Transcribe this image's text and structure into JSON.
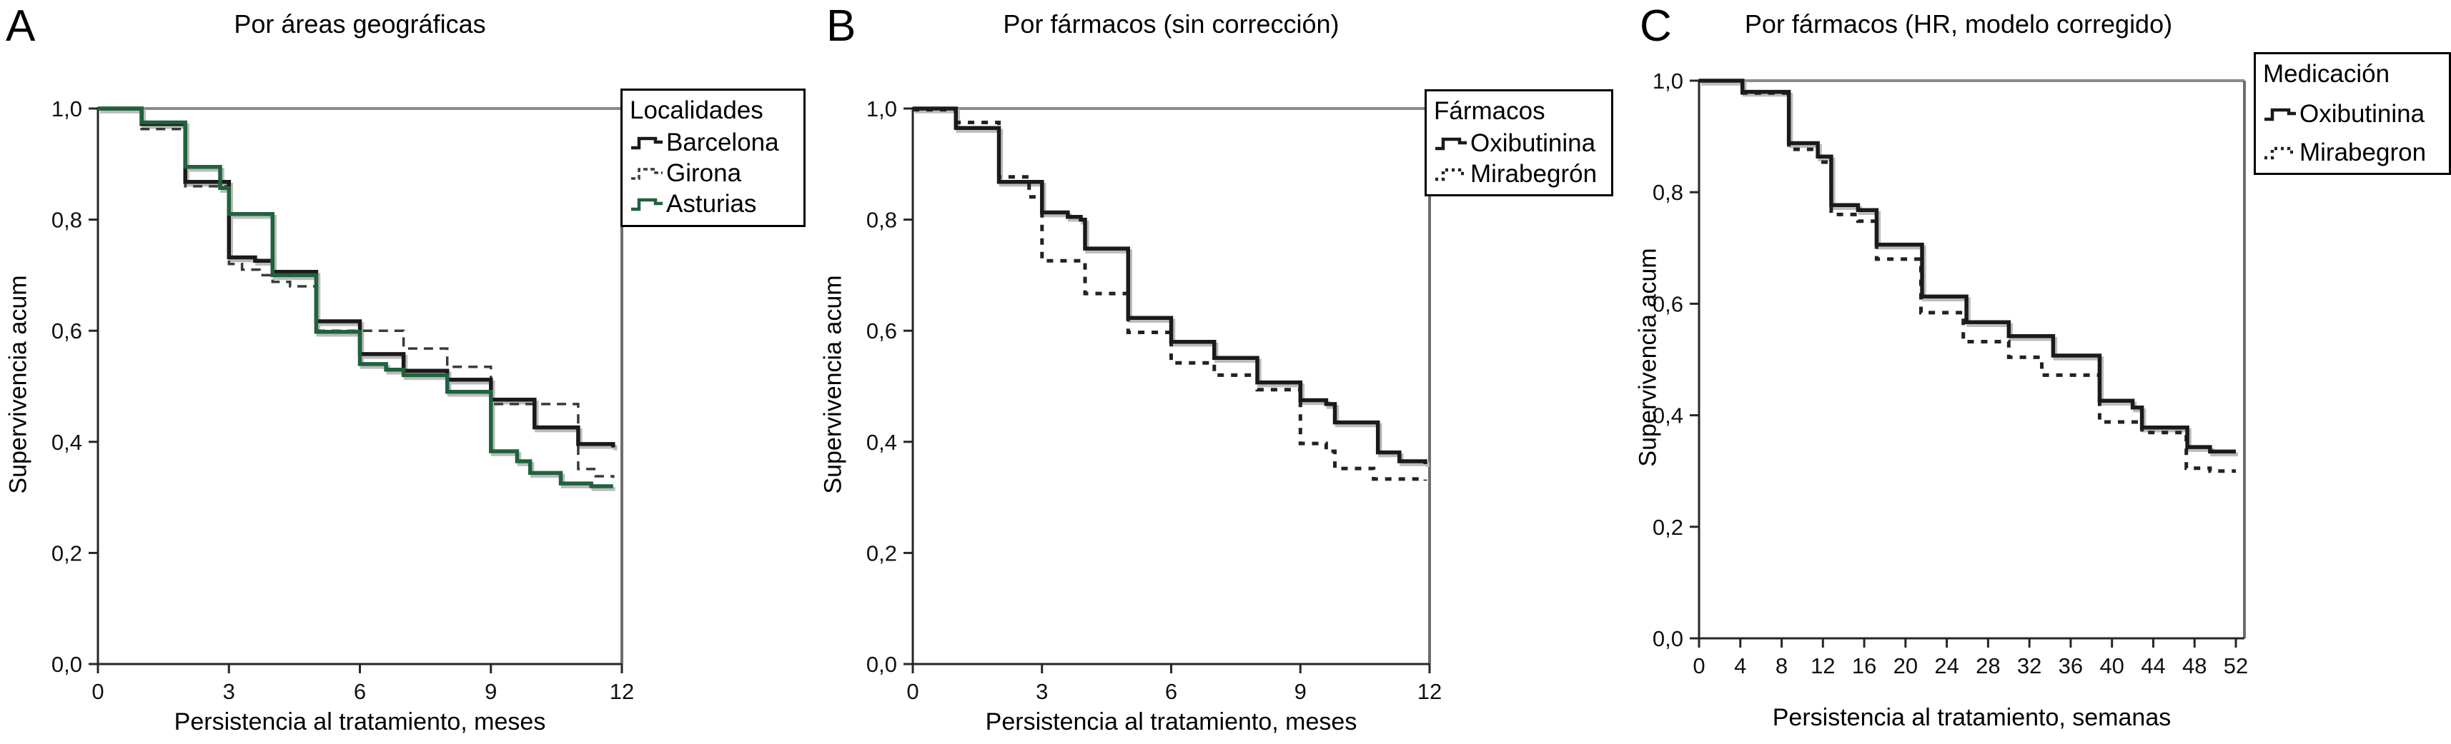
{
  "chart_data": [
    {
      "panel_label": "A",
      "title": "Por áreas geográficas",
      "type": "line",
      "subtype": "kaplan-meier-step",
      "xlabel": "Persistencia al tratamiento, meses",
      "ylabel": "Supervivencia acum",
      "xlim": [
        0,
        12
      ],
      "ylim": [
        0,
        1
      ],
      "grid": false,
      "xticks": [
        0,
        3,
        6,
        9,
        12
      ],
      "xtick_labels": [
        "0",
        "3",
        "6",
        "9",
        "12"
      ],
      "yticks": [
        0,
        0.2,
        0.4,
        0.6,
        0.8,
        1.0
      ],
      "ytick_labels": [
        "0,0",
        "0,2",
        "0,4",
        "0,6",
        "0,8",
        "1,0"
      ],
      "legend": {
        "title": "Localidades",
        "position": "top-right-outside"
      },
      "series": [
        {
          "name": "Barcelona",
          "color": "#1a1a1a",
          "dash": "solid",
          "points": [
            [
              0,
              1.0
            ],
            [
              1,
              0.972
            ],
            [
              2,
              0.868
            ],
            [
              3,
              0.732
            ],
            [
              3.6,
              0.726
            ],
            [
              4,
              0.706
            ],
            [
              5,
              0.617
            ],
            [
              6,
              0.558
            ],
            [
              7,
              0.528
            ],
            [
              8,
              0.512
            ],
            [
              9,
              0.476
            ],
            [
              10,
              0.426
            ],
            [
              11,
              0.396
            ],
            [
              11.8,
              0.39
            ]
          ]
        },
        {
          "name": "Girona",
          "color": "#3a3a3a",
          "dash": "dashed",
          "points": [
            [
              0,
              1.0
            ],
            [
              1,
              0.963
            ],
            [
              2,
              0.86
            ],
            [
              3,
              0.72
            ],
            [
              3.3,
              0.71
            ],
            [
              3.7,
              0.7
            ],
            [
              4,
              0.688
            ],
            [
              4.4,
              0.68
            ],
            [
              5,
              0.6
            ],
            [
              7,
              0.568
            ],
            [
              8,
              0.535
            ],
            [
              9,
              0.468
            ],
            [
              11,
              0.351
            ],
            [
              11.4,
              0.338
            ],
            [
              11.8,
              0.335
            ]
          ]
        },
        {
          "name": "Asturias",
          "color": "#1f623c",
          "dash": "solid",
          "points": [
            [
              0,
              1.0
            ],
            [
              1,
              0.975
            ],
            [
              2,
              0.895
            ],
            [
              2.8,
              0.857
            ],
            [
              3,
              0.81
            ],
            [
              4,
              0.7
            ],
            [
              5,
              0.598
            ],
            [
              6,
              0.54
            ],
            [
              6.6,
              0.53
            ],
            [
              7,
              0.52
            ],
            [
              8,
              0.49
            ],
            [
              9,
              0.383
            ],
            [
              9.6,
              0.365
            ],
            [
              9.9,
              0.344
            ],
            [
              10.6,
              0.325
            ],
            [
              11.3,
              0.32
            ],
            [
              11.8,
              0.32
            ]
          ]
        }
      ]
    },
    {
      "panel_label": "B",
      "title": "Por fármacos (sin corrección)",
      "type": "line",
      "subtype": "kaplan-meier-step",
      "xlabel": "Persistencia al tratamiento, meses",
      "ylabel": "Supervivencia acum",
      "xlim": [
        0,
        12
      ],
      "ylim": [
        0,
        1
      ],
      "grid": false,
      "xticks": [
        0,
        3,
        6,
        9,
        12
      ],
      "xtick_labels": [
        "0",
        "3",
        "6",
        "9",
        "12"
      ],
      "yticks": [
        0,
        0.2,
        0.4,
        0.6,
        0.8,
        1.0
      ],
      "ytick_labels": [
        "0,0",
        "0,2",
        "0,4",
        "0,6",
        "0,8",
        "1,0"
      ],
      "legend": {
        "title": "Fármacos",
        "position": "top-right-outside"
      },
      "series": [
        {
          "name": "Oxibutinina",
          "color": "#1a1a1a",
          "dash": "solid",
          "points": [
            [
              0,
              1.0
            ],
            [
              1,
              0.965
            ],
            [
              2,
              0.868
            ],
            [
              3,
              0.813
            ],
            [
              3.6,
              0.805
            ],
            [
              3.9,
              0.8
            ],
            [
              4,
              0.748
            ],
            [
              5,
              0.623
            ],
            [
              6,
              0.58
            ],
            [
              7,
              0.551
            ],
            [
              8,
              0.507
            ],
            [
              9,
              0.475
            ],
            [
              9.6,
              0.468
            ],
            [
              9.8,
              0.435
            ],
            [
              10.8,
              0.381
            ],
            [
              11.3,
              0.365
            ],
            [
              11.9,
              0.36
            ]
          ]
        },
        {
          "name": "Mirabegrón",
          "color": "#222222",
          "dash": "dotted",
          "points": [
            [
              0,
              0.998
            ],
            [
              1,
              0.975
            ],
            [
              2,
              0.877
            ],
            [
              2.7,
              0.841
            ],
            [
              3,
              0.726
            ],
            [
              4,
              0.667
            ],
            [
              5,
              0.597
            ],
            [
              6,
              0.542
            ],
            [
              7,
              0.52
            ],
            [
              8,
              0.494
            ],
            [
              9,
              0.397
            ],
            [
              9.6,
              0.383
            ],
            [
              9.8,
              0.352
            ],
            [
              10.7,
              0.333
            ],
            [
              11.9,
              0.33
            ]
          ]
        }
      ]
    },
    {
      "panel_label": "C",
      "title": "Por fármacos (HR, modelo corregido)",
      "type": "line",
      "subtype": "kaplan-meier-step",
      "xlabel": "Persistencia al tratamiento, semanas",
      "ylabel": "Supervivencia acum",
      "xlim": [
        0,
        52
      ],
      "ylim": [
        0,
        1
      ],
      "grid": false,
      "xticks": [
        0,
        4,
        8,
        12,
        16,
        20,
        24,
        28,
        32,
        36,
        40,
        44,
        48,
        52
      ],
      "xtick_labels": [
        "0",
        "4",
        "8",
        "12",
        "16",
        "20",
        "24",
        "28",
        "32",
        "36",
        "40",
        "44",
        "48",
        "52"
      ],
      "yticks": [
        0,
        0.2,
        0.4,
        0.6,
        0.8,
        1.0
      ],
      "ytick_labels": [
        "0,0",
        "0,2",
        "0,4",
        "0,6",
        "0,8",
        "1,0"
      ],
      "legend": {
        "title": "Medicación",
        "position": "top-right-outside"
      },
      "series": [
        {
          "name": "Oxibutinina",
          "color": "#1a1a1a",
          "dash": "solid",
          "points": [
            [
              0,
              1.0
            ],
            [
              4.2,
              0.98
            ],
            [
              8.7,
              0.888
            ],
            [
              11.5,
              0.864
            ],
            [
              12.8,
              0.777
            ],
            [
              15.4,
              0.768
            ],
            [
              17.2,
              0.706
            ],
            [
              21.6,
              0.613
            ],
            [
              25.9,
              0.567
            ],
            [
              30,
              0.542
            ],
            [
              34.3,
              0.507
            ],
            [
              38.8,
              0.426
            ],
            [
              42,
              0.414
            ],
            [
              42.9,
              0.378
            ],
            [
              47.3,
              0.343
            ],
            [
              49.5,
              0.335
            ],
            [
              52,
              0.335
            ]
          ]
        },
        {
          "name": "Mirabegron",
          "color": "#222222",
          "dash": "dotted",
          "points": [
            [
              0,
              1.0
            ],
            [
              4.2,
              0.978
            ],
            [
              8.7,
              0.877
            ],
            [
              11.5,
              0.854
            ],
            [
              12.8,
              0.76
            ],
            [
              15.4,
              0.748
            ],
            [
              17.2,
              0.68
            ],
            [
              21.5,
              0.584
            ],
            [
              25.6,
              0.532
            ],
            [
              30,
              0.504
            ],
            [
              33.2,
              0.472
            ],
            [
              38.8,
              0.388
            ],
            [
              42.9,
              0.369
            ],
            [
              47.2,
              0.305
            ],
            [
              49.5,
              0.3
            ],
            [
              52,
              0.3
            ]
          ]
        }
      ]
    }
  ],
  "style": {
    "frame_dark": "#262626",
    "frame_gray": "#8a8a8a",
    "shadow": "#bcbcbc"
  }
}
